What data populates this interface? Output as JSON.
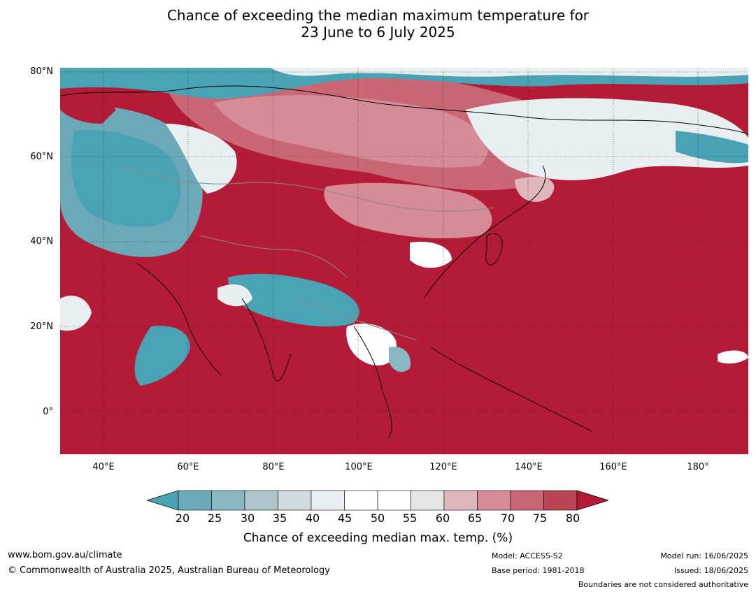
{
  "title": {
    "line1": "Chance of exceeding the median maximum temperature for",
    "line2": "23 June to 6 July 2025"
  },
  "map": {
    "lat_ticks": [
      "80°N",
      "60°N",
      "40°N",
      "20°N",
      "0°"
    ],
    "lon_ticks": [
      "40°E",
      "60°E",
      "80°E",
      "100°E",
      "120°E",
      "140°E",
      "160°E",
      "180°"
    ],
    "lat_range": [
      -10,
      80
    ],
    "lon_range": [
      30,
      192
    ],
    "ocean_color": "#b41b36"
  },
  "colorbar": {
    "ticks": [
      "20",
      "25",
      "30",
      "35",
      "40",
      "45",
      "50",
      "55",
      "60",
      "65",
      "70",
      "75",
      "80"
    ],
    "colors": [
      "#4aa3b4",
      "#6ba9b8",
      "#89b8c2",
      "#adc5cb",
      "#d1dadd",
      "#e9eff1",
      "#ffffff",
      "#ffffff",
      "#e6e6e6",
      "#dfb6bc",
      "#d68c96",
      "#c96774",
      "#bb4554",
      "#b41b36"
    ],
    "label": "Chance of exceeding median max. temp. (%)"
  },
  "footer": {
    "website": "www.bom.gov.au/climate",
    "copyright": "© Commonwealth of Australia 2025, Australian Bureau of Meteorology",
    "model": "Model: ACCESS-S2",
    "base_period": "Base period: 1981-2018",
    "model_run": "Model run: 16/06/2025",
    "issued": "Issued: 18/06/2025",
    "boundaries": "Boundaries are not considered authoritative"
  }
}
